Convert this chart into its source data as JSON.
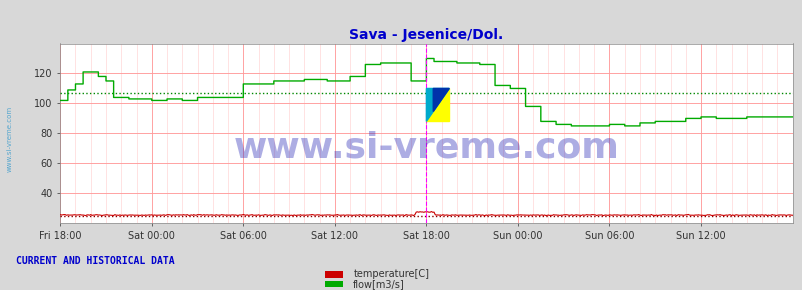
{
  "title": "Sava - Jesenice/Dol.",
  "title_color": "#0000cc",
  "title_fontsize": 10,
  "bg_color": "#d8d8d8",
  "plot_bg_color": "#ffffff",
  "ylim": [
    20,
    140
  ],
  "yticks": [
    40,
    60,
    80,
    100,
    120
  ],
  "xtick_labels": [
    "Fri 18:00",
    "Sat 00:00",
    "Sat 06:00",
    "Sat 12:00",
    "Sat 18:00",
    "Sun 00:00",
    "Sun 06:00",
    "Sun 12:00"
  ],
  "xtick_positions": [
    0,
    72,
    144,
    216,
    288,
    360,
    432,
    504
  ],
  "grid_major_color": "#ff9999",
  "grid_minor_color": "#ffcccc",
  "flow_color": "#00aa00",
  "temp_color": "#cc0000",
  "flow_avg_color": "#008800",
  "temp_avg_color": "#880000",
  "watermark": "www.si-vreme.com",
  "watermark_color": "#3333bb",
  "watermark_alpha": 0.4,
  "watermark_fontsize": 26,
  "sidebar_text": "www.si-vreme.com",
  "sidebar_color": "#3399cc",
  "footer_text": "CURRENT AND HISTORICAL DATA",
  "footer_color": "#0000cc",
  "legend_items": [
    "temperature[C]",
    "flow[m3/s]"
  ],
  "legend_colors": [
    "#cc0000",
    "#00aa00"
  ],
  "current_time_x": 288,
  "flow_avg_value": 107,
  "temp_avg_value": 25,
  "n_points": 577,
  "xlim": [
    0,
    576
  ]
}
